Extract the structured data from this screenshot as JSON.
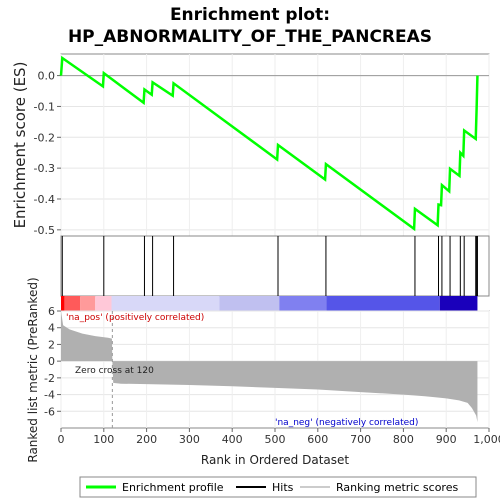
{
  "chart_data": {
    "type": "line",
    "title_line1": "Enrichment plot:",
    "title_line2": "HP_ABNORMALITY_OF_THE_PANCREAS",
    "es_ylabel": "Enrichment score (ES)",
    "metric_ylabel_line1": "Ranked list metric (PreRanked)",
    "metric_ylabel_line2": "",
    "xlabel": "Rank in Ordered Dataset",
    "xlim": [
      0,
      1000
    ],
    "es_ylim": [
      -0.52,
      0.07
    ],
    "metric_ylim": [
      -8,
      6
    ],
    "x_ticks": [
      0,
      100,
      200,
      300,
      400,
      500,
      600,
      700,
      800,
      900,
      1000
    ],
    "x_tick_labels": [
      "0",
      "100",
      "200",
      "300",
      "400",
      "500",
      "600",
      "700",
      "800",
      "900",
      "1,000"
    ],
    "es_ticks": [
      0.0,
      -0.1,
      -0.2,
      -0.3,
      -0.4,
      -0.5
    ],
    "es_tick_labels": [
      "0.0",
      "-0.1",
      "-0.2",
      "-0.3",
      "-0.4",
      "-0.5"
    ],
    "metric_ticks": [
      6,
      4,
      2,
      0,
      -2,
      -4,
      -6
    ],
    "metric_tick_labels": [
      "6",
      "4",
      "2",
      "0",
      "-2",
      "-4",
      "-6"
    ],
    "enrichment_profile": {
      "name": "Enrichment profile",
      "color": "#00ff00",
      "x": [
        0,
        3,
        98,
        100,
        193,
        195,
        212,
        214,
        261,
        263,
        505,
        507,
        617,
        619,
        825,
        827,
        880,
        882,
        888,
        890,
        907,
        909,
        931,
        933,
        940,
        942,
        969,
        971,
        973
      ],
      "y": [
        0.0,
        0.057,
        -0.035,
        0.008,
        -0.088,
        -0.045,
        -0.062,
        -0.022,
        -0.065,
        -0.025,
        -0.272,
        -0.225,
        -0.337,
        -0.287,
        -0.497,
        -0.432,
        -0.485,
        -0.418,
        -0.42,
        -0.355,
        -0.375,
        -0.302,
        -0.325,
        -0.25,
        -0.26,
        -0.178,
        -0.205,
        -0.11,
        0.0
      ]
    },
    "hits": [
      3,
      100,
      195,
      214,
      263,
      507,
      619,
      827,
      882,
      890,
      909,
      933,
      942,
      969,
      971,
      973
    ],
    "metric": {
      "x": [
        0,
        5,
        20,
        50,
        80,
        110,
        119,
        120,
        122,
        140,
        200,
        300,
        400,
        500,
        600,
        700,
        800,
        850,
        880,
        900,
        930,
        950,
        960,
        970,
        973
      ],
      "y": [
        6.0,
        4.3,
        3.8,
        3.3,
        3.0,
        2.8,
        2.7,
        0.0,
        -2.6,
        -2.7,
        -2.75,
        -2.85,
        -3.0,
        -3.2,
        -3.4,
        -3.7,
        -4.0,
        -4.2,
        -4.35,
        -4.45,
        -4.7,
        -5.0,
        -5.6,
        -6.5,
        -7.3
      ]
    },
    "zero_cross": 120,
    "zero_cross_label": "Zero cross at 120",
    "pos_label": "'na_pos' (positively correlated)",
    "neg_label": "'na_neg' (negatively correlated)",
    "pos_color": "#cc0000",
    "neg_color": "#0000cc",
    "metric_fill_color": "#b0b0b0",
    "heat_segments": [
      {
        "from": 0,
        "to": 8,
        "color": "#ff0000"
      },
      {
        "from": 8,
        "to": 45,
        "color": "#ff5a5a"
      },
      {
        "from": 45,
        "to": 80,
        "color": "#ff9a9a"
      },
      {
        "from": 80,
        "to": 118,
        "color": "#ffc8d8"
      },
      {
        "from": 118,
        "to": 370,
        "color": "#d8d8f8"
      },
      {
        "from": 370,
        "to": 510,
        "color": "#c0c0f0"
      },
      {
        "from": 510,
        "to": 620,
        "color": "#8080f0"
      },
      {
        "from": 620,
        "to": 885,
        "color": "#5555e8"
      },
      {
        "from": 885,
        "to": 973,
        "color": "#1a00bb"
      }
    ],
    "legend": [
      {
        "name": "Enrichment profile",
        "color": "#00ff00",
        "kind": "line"
      },
      {
        "name": "Hits",
        "color": "#000000",
        "kind": "line"
      },
      {
        "name": "Ranking metric scores",
        "color": "#cccccc",
        "kind": "line"
      }
    ],
    "legend_placement": "bottom",
    "grid": true
  }
}
